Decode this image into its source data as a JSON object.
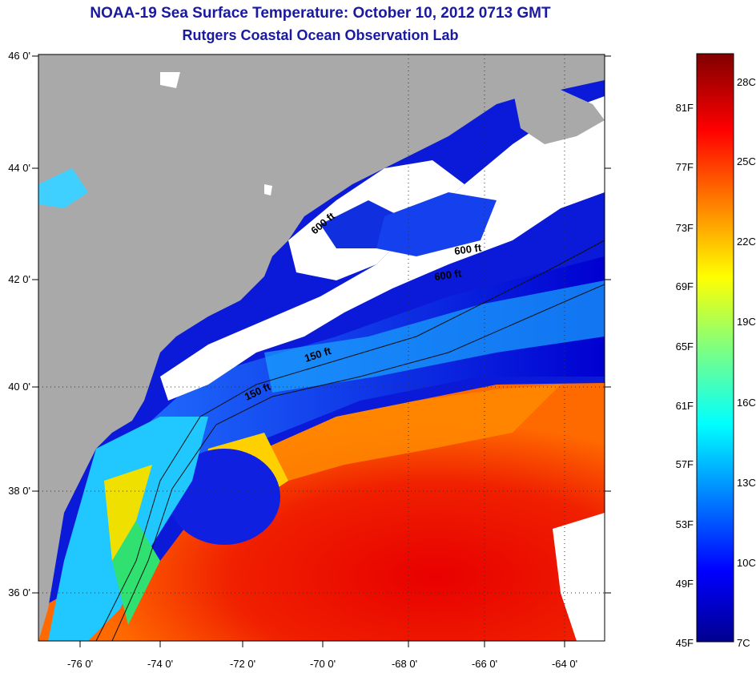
{
  "title": {
    "line1": "NOAA-19 Sea Surface Temperature:  October 10, 2012 0713 GMT",
    "line2": "Rutgers Coastal Ocean Observation Lab"
  },
  "map": {
    "lat_labels": [
      "46 0'",
      "44 0'",
      "42 0'",
      "40 0'",
      "38 0'",
      "36 0'"
    ],
    "lon_labels": [
      "-76 0'",
      "-74 0'",
      "-72 0'",
      "-70 0'",
      "-68 0'",
      "-66 0'",
      "-64 0'"
    ],
    "contour_labels": [
      "600 ft",
      "600 ft",
      "600 ft",
      "150 ft",
      "150 ft"
    ],
    "colors": {
      "land": "#a9a9a9",
      "cloud": "#ffffff"
    }
  },
  "colorbar": {
    "fahrenheit": [
      "81F",
      "77F",
      "73F",
      "69F",
      "65F",
      "61F",
      "57F",
      "53F",
      "49F",
      "45F"
    ],
    "celsius": [
      "28C",
      "25C",
      "22C",
      "19C",
      "16C",
      "13C",
      "10C",
      "7C"
    ]
  }
}
